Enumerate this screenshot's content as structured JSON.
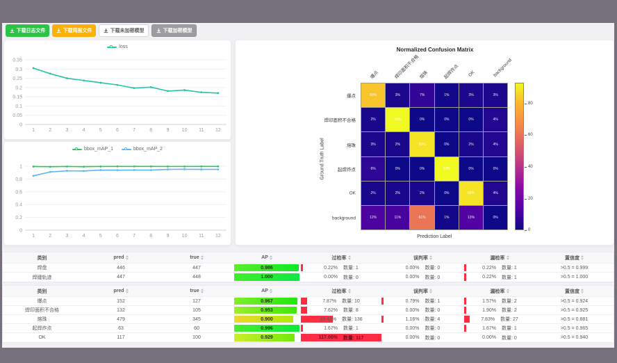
{
  "toolbar": {
    "buttons": [
      {
        "label": "下载日志文件",
        "bg": "#2bc447",
        "fg": "#ffffff",
        "border": "#2bc447"
      },
      {
        "label": "下载简报文件",
        "bg": "#ffb005",
        "fg": "#ffffff",
        "border": "#ffb005"
      },
      {
        "label": "下载未加密模型",
        "bg": "#ffffff",
        "fg": "#595959",
        "border": "#d9d9d9"
      },
      {
        "label": "下载加密模型",
        "bg": "#9c9ca1",
        "fg": "#ffffff",
        "border": "#8e8e93"
      }
    ]
  },
  "chart_data": [
    {
      "type": "line",
      "title": "",
      "x": [
        1,
        2,
        3,
        4,
        5,
        6,
        7,
        8,
        9,
        10,
        11,
        12
      ],
      "series": [
        {
          "name": "loss",
          "color": "#25c4a4",
          "values": [
            0.305,
            0.275,
            0.25,
            0.238,
            0.226,
            0.214,
            0.197,
            0.202,
            0.181,
            0.186,
            0.174,
            0.17
          ]
        }
      ],
      "ymax": 0.35,
      "yticks": [
        0,
        0.05,
        0.1,
        0.15,
        0.2,
        0.25,
        0.3,
        0.35
      ],
      "ytick_labels": [
        "0",
        "0.05",
        "0.1",
        "0.15",
        "0.2",
        "0.25",
        "0.3",
        "0.35"
      ],
      "legend_position": "top"
    },
    {
      "type": "line",
      "title": "",
      "x": [
        1,
        2,
        3,
        4,
        5,
        6,
        7,
        8,
        9,
        10,
        11,
        12
      ],
      "series": [
        {
          "name": "bbox_mAP_1",
          "color": "#2cc55d",
          "values": [
            0.995,
            0.992,
            0.996,
            0.993,
            0.996,
            0.997,
            0.997,
            0.997,
            0.996,
            0.996,
            0.997,
            0.997
          ]
        },
        {
          "name": "bbox_mAP_2",
          "color": "#5eb6f2",
          "values": [
            0.85,
            0.91,
            0.928,
            0.925,
            0.94,
            0.938,
            0.94,
            0.94,
            0.95,
            0.952,
            0.95,
            0.95
          ]
        }
      ],
      "ymax": 1,
      "yticks": [
        0,
        0.2,
        0.4,
        0.6,
        0.8,
        1
      ],
      "ytick_labels": [
        "0",
        "0.2",
        "0.4",
        "0.6",
        "0.8",
        "1"
      ],
      "legend_position": "top"
    },
    {
      "type": "heatmap",
      "title": "Normalized Confusion Matrix",
      "xlabel": "Prediction Label",
      "ylabel": "Ground Truth Label",
      "labels": [
        "爆点",
        "焊印面积不合格",
        "熔珠",
        "起焊炸点",
        "OK",
        "background"
      ],
      "matrix": [
        [
          83,
          3,
          7,
          1,
          3,
          3
        ],
        [
          2,
          93,
          0,
          0,
          0,
          4
        ],
        [
          3,
          2,
          89,
          0,
          2,
          4
        ],
        [
          6,
          0,
          0,
          93,
          0,
          0
        ],
        [
          2,
          2,
          2,
          0,
          89,
          4
        ],
        [
          12,
          11,
          61,
          1,
          13,
          0
        ]
      ],
      "value_suffix": "%",
      "vmax": 93,
      "colorbar_ticks": [
        0,
        20,
        40,
        60,
        80
      ],
      "colormap": "plasma"
    }
  ],
  "tables": {
    "headers": {
      "cls": "类别",
      "pred": "pred",
      "true": "true",
      "ap": "AP",
      "over": "过检率",
      "mis": "误判率",
      "miss": "漏检率",
      "conf": "置信度"
    },
    "count_label": "数量:",
    "bar_color": "#ff2d44",
    "table1": {
      "rows": [
        {
          "cls": "焊盘",
          "pred": "446",
          "true": "447",
          "ap": "0.986",
          "over": {
            "rate": "0.22%",
            "pct": 0.22,
            "count": "1"
          },
          "mis": {
            "rate": "0.00%",
            "pct": 0,
            "count": "0"
          },
          "miss": {
            "rate": "0.22%",
            "pct": 0.22,
            "count": "1"
          },
          "conf": ">0.5 = 0.999"
        },
        {
          "cls": "焊缝轨迹",
          "pred": "447",
          "true": "448",
          "ap": "1.000",
          "over": {
            "rate": "0.00%",
            "pct": 0,
            "count": "0"
          },
          "mis": {
            "rate": "0.00%",
            "pct": 0,
            "count": "0"
          },
          "miss": {
            "rate": "0.22%",
            "pct": 0.22,
            "count": "1"
          },
          "conf": ">0.5 = 1.000"
        }
      ]
    },
    "table2": {
      "rows": [
        {
          "cls": "爆点",
          "pred": "152",
          "true": "127",
          "ap": "0.967",
          "over": {
            "rate": "7.87%",
            "pct": 7.87,
            "count": "10"
          },
          "mis": {
            "rate": "0.79%",
            "pct": 0.79,
            "count": "1"
          },
          "miss": {
            "rate": "1.57%",
            "pct": 1.57,
            "count": "2"
          },
          "conf": ">0.5 = 0.924"
        },
        {
          "cls": "焊印面积不合格",
          "pred": "132",
          "true": "105",
          "ap": "0.953",
          "over": {
            "rate": "7.62%",
            "pct": 7.62,
            "count": "8"
          },
          "mis": {
            "rate": "0.00%",
            "pct": 0,
            "count": "0"
          },
          "miss": {
            "rate": "1.90%",
            "pct": 1.9,
            "count": "2"
          },
          "conf": ">0.5 = 0.925"
        },
        {
          "cls": "熔珠",
          "pred": "479",
          "true": "345",
          "ap": "0.900",
          "over": {
            "rate": "39.42%",
            "pct": 39.42,
            "count": "136"
          },
          "mis": {
            "rate": "1.16%",
            "pct": 1.16,
            "count": "4"
          },
          "miss": {
            "rate": "7.83%",
            "pct": 7.83,
            "count": "27"
          },
          "conf": ">0.5 = 0.881"
        },
        {
          "cls": "起焊炸点",
          "pred": "63",
          "true": "60",
          "ap": "0.996",
          "over": {
            "rate": "1.67%",
            "pct": 1.67,
            "count": "1"
          },
          "mis": {
            "rate": "0.00%",
            "pct": 0,
            "count": "0"
          },
          "miss": {
            "rate": "1.67%",
            "pct": 1.67,
            "count": "1"
          },
          "conf": ">0.5 = 0.965"
        },
        {
          "cls": "OK",
          "pred": "117",
          "true": "100",
          "ap": "0.929",
          "over": {
            "rate": "117.00%",
            "pct": 117,
            "count": "117"
          },
          "mis": {
            "rate": "0.00%",
            "pct": 0,
            "count": "0"
          },
          "miss": {
            "rate": "0.00%",
            "pct": 0,
            "count": "0"
          },
          "conf": ">0.5 = 0.940"
        }
      ]
    }
  }
}
